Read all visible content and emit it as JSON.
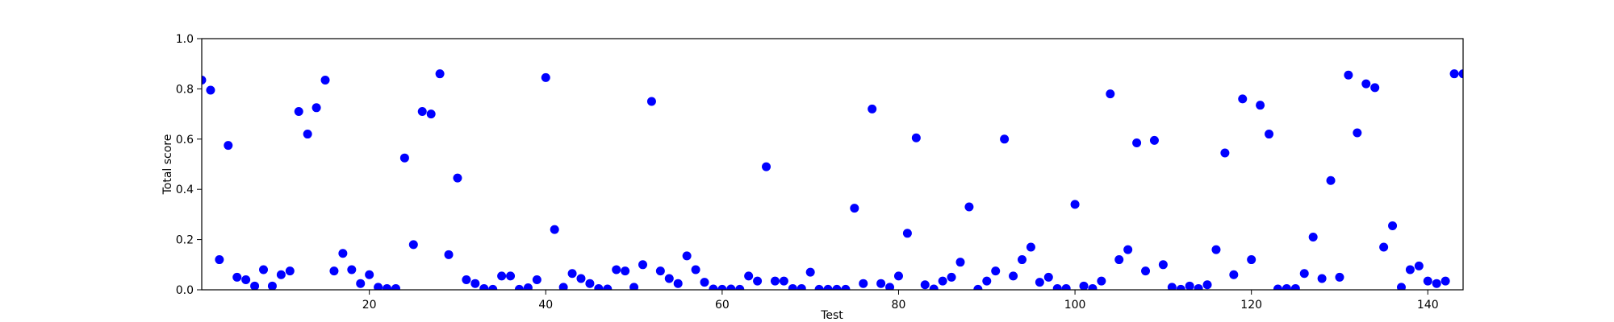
{
  "chart_data": {
    "type": "scatter",
    "title": "",
    "xlabel": "Test",
    "ylabel": "Total score",
    "xlim": [
      1,
      144
    ],
    "ylim": [
      0.0,
      1.0
    ],
    "xticks": [
      20,
      40,
      60,
      80,
      100,
      120,
      140
    ],
    "xtick_labels": [
      "20",
      "40",
      "60",
      "80",
      "100",
      "120",
      "140"
    ],
    "yticks": [
      0.0,
      0.2,
      0.4,
      0.6,
      0.8,
      1.0
    ],
    "ytick_labels": [
      "0.0",
      "0.2",
      "0.4",
      "0.6",
      "0.8",
      "1.0"
    ],
    "grid": false,
    "legend": "none",
    "marker_color": "#0000ff",
    "series": [
      {
        "x": [
          1,
          2,
          3,
          4,
          5,
          6,
          7,
          8,
          9,
          10,
          11,
          12,
          13,
          14,
          15,
          16,
          17,
          18,
          19,
          20,
          21,
          22,
          23,
          24,
          25,
          26,
          27,
          28,
          29,
          30,
          31,
          32,
          33,
          34,
          35,
          36,
          37,
          38,
          39,
          40,
          41,
          42,
          43,
          44,
          45,
          46,
          47,
          48,
          49,
          50,
          51,
          52,
          53,
          54,
          55,
          56,
          57,
          58,
          59,
          60,
          61,
          62,
          63,
          64,
          65,
          66,
          67,
          68,
          69,
          70,
          71,
          72,
          73,
          74,
          75,
          76,
          77,
          78,
          79,
          80,
          81,
          82,
          83,
          84,
          85,
          86,
          87,
          88,
          89,
          90,
          91,
          92,
          93,
          94,
          95,
          96,
          97,
          98,
          99,
          100,
          101,
          102,
          103,
          104,
          105,
          106,
          107,
          108,
          109,
          110,
          111,
          112,
          113,
          114,
          115,
          116,
          117,
          118,
          119,
          120,
          121,
          122,
          123,
          124,
          125,
          126,
          127,
          128,
          129,
          130,
          131,
          132,
          133,
          134,
          135,
          136,
          137,
          138,
          139,
          140,
          141,
          142,
          143,
          144
        ],
        "y": [
          0.835,
          0.795,
          0.12,
          0.575,
          0.05,
          0.04,
          0.015,
          0.08,
          0.015,
          0.06,
          0.075,
          0.71,
          0.62,
          0.725,
          0.835,
          0.075,
          0.145,
          0.08,
          0.025,
          0.06,
          0.01,
          0.005,
          0.005,
          0.525,
          0.18,
          0.71,
          0.7,
          0.86,
          0.14,
          0.445,
          0.04,
          0.025,
          0.005,
          0.002,
          0.055,
          0.055,
          0.002,
          0.008,
          0.04,
          0.845,
          0.24,
          0.01,
          0.065,
          0.045,
          0.025,
          0.005,
          0.003,
          0.08,
          0.075,
          0.01,
          0.1,
          0.75,
          0.075,
          0.045,
          0.025,
          0.135,
          0.08,
          0.03,
          0.003,
          0.002,
          0.003,
          0.002,
          0.055,
          0.035,
          0.49,
          0.035,
          0.035,
          0.005,
          0.005,
          0.07,
          0.002,
          0.002,
          0.002,
          0.002,
          0.325,
          0.025,
          0.72,
          0.025,
          0.01,
          0.055,
          0.225,
          0.605,
          0.02,
          0.003,
          0.035,
          0.05,
          0.11,
          0.33,
          0.002,
          0.035,
          0.075,
          0.6,
          0.055,
          0.12,
          0.17,
          0.03,
          0.05,
          0.005,
          0.005,
          0.34,
          0.015,
          0.005,
          0.035,
          0.78,
          0.12,
          0.16,
          0.585,
          0.075,
          0.595,
          0.1,
          0.01,
          0.002,
          0.015,
          0.005,
          0.02,
          0.16,
          0.545,
          0.06,
          0.76,
          0.12,
          0.735,
          0.62,
          0.003,
          0.005,
          0.005,
          0.065,
          0.21,
          0.045,
          0.435,
          0.05,
          0.855,
          0.625,
          0.82,
          0.805,
          0.17,
          0.255,
          0.01,
          0.08,
          0.095,
          0.035,
          0.025,
          0.035,
          0.86,
          0.86
        ]
      }
    ]
  }
}
